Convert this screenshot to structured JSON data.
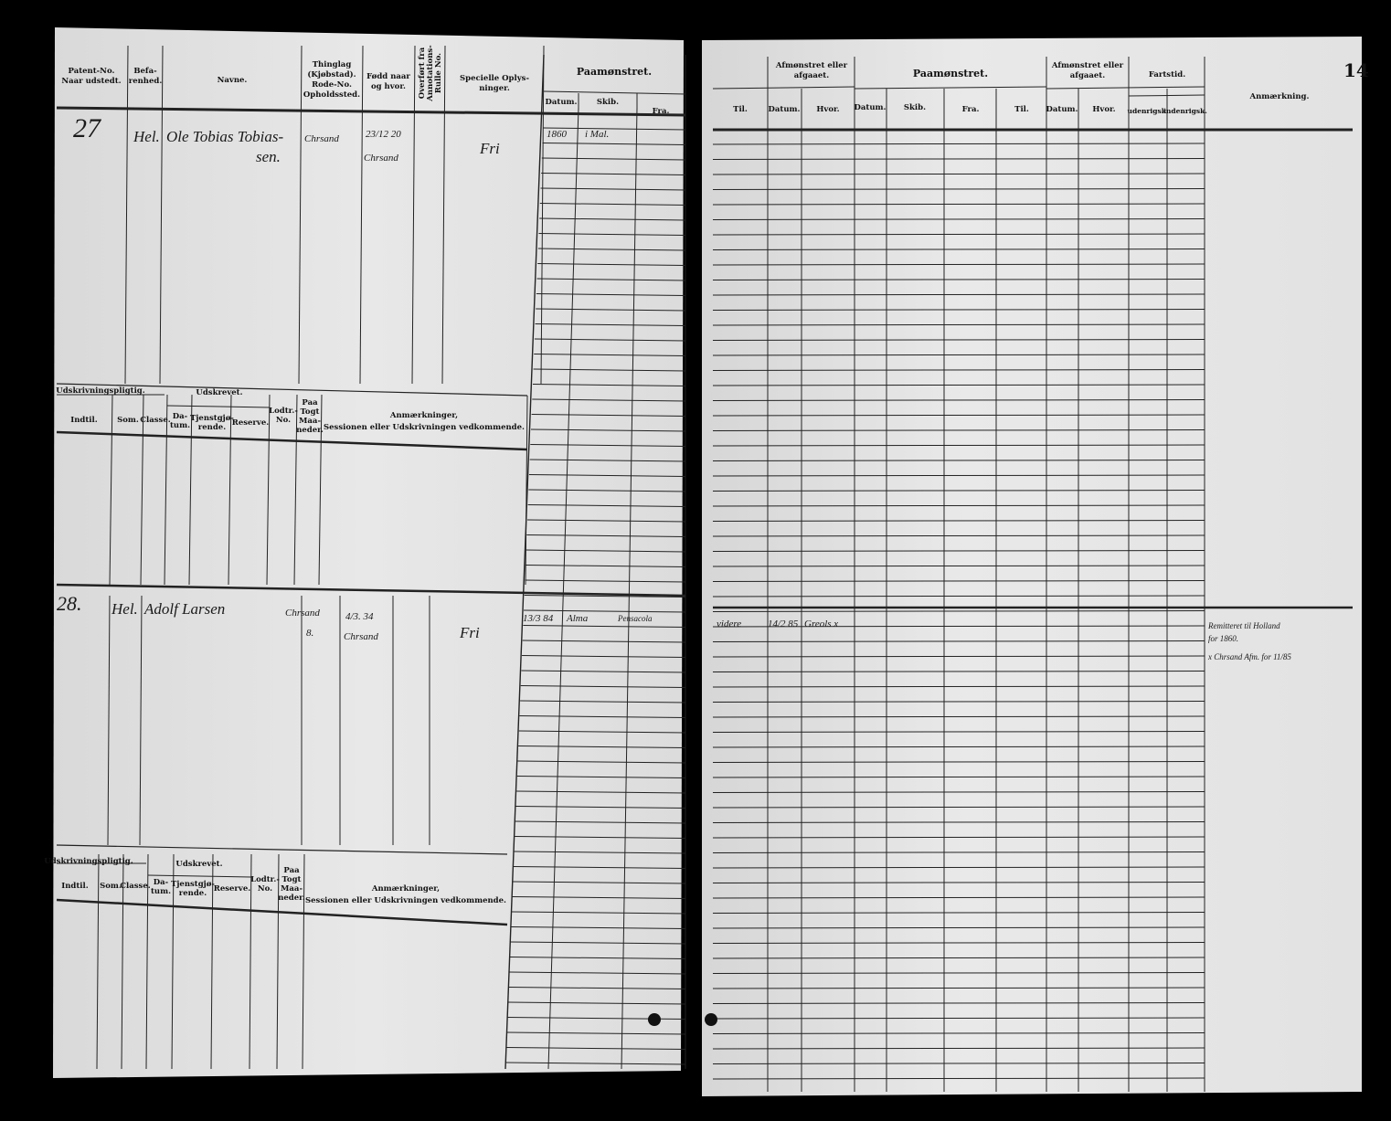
{
  "page_number": "14",
  "left_page": {
    "headers": {
      "patent": [
        "Patent-No.",
        "Naar udstedt."
      ],
      "befarenhed": [
        "Befa-",
        "renhed."
      ],
      "navne": "Navne.",
      "thinglag": [
        "Thinglag",
        "(Kjøbstad).",
        "Rode-No.",
        "Opholdssted."
      ],
      "fodt": [
        "Fødd naar",
        "og hvor."
      ],
      "overfort": [
        "Overført fra",
        "Annotations-",
        "Rulle No."
      ],
      "specielle": [
        "Specielle Oplys-",
        "ninger."
      ],
      "paamonstret": "Paamønstret.",
      "datum": "Datum.",
      "skib": "Skib.",
      "fra": "Fra."
    },
    "sub_headers": {
      "udskrivningspligtig": "Udskrivningspligtig.",
      "udskrevet": "Udskrevet.",
      "indtil": "Indtil.",
      "som": "Som.",
      "classe": "Classe.",
      "datum": [
        "Da-",
        "tum."
      ],
      "tjenstgjorende": [
        "Tjenstgjø-",
        "rende."
      ],
      "reserve": "Reserve.",
      "lodtr": [
        "Lodtr.-",
        "No."
      ],
      "paa_togt": [
        "Paa",
        "Togt",
        "Maa-",
        "neder."
      ],
      "anmaerkninger": [
        "Anmærkninger,",
        "Sessionen eller Udskrivningen vedkommende."
      ]
    },
    "records": [
      {
        "number": "27",
        "befarenhed": "Hel.",
        "name": "Ole Tobias Tobiassen",
        "name_line1": "Ole Tobias Tobias-",
        "name_line2": "sen.",
        "thinglag": "Chrsand",
        "fodt": "23/12 20",
        "fodt_place": "Chrsand",
        "specielle": "Fri",
        "paamonstret_datum": "1860",
        "paamonstret_skib": "i Mal."
      },
      {
        "number": "28.",
        "befarenhed": "Hel.",
        "name": "Adolf Larsen",
        "thinglag": "Chrsand",
        "thinglag_rode": "8.",
        "fodt": "4/3. 34",
        "fodt_place": "Chrsand",
        "specielle": "Fri",
        "paamonstret_datum": "13/3 84",
        "paamonstret_skib": "Alma",
        "paamonstret_fra": "Pensacola"
      }
    ]
  },
  "right_page": {
    "headers": {
      "til": "Til.",
      "afmonstret1": [
        "Afmønstret eller",
        "afgaaet."
      ],
      "datum": "Datum.",
      "hvor": "Hvor.",
      "paamonstret": "Paamønstret.",
      "skib": "Skib.",
      "fra": "Fra.",
      "afmonstret2": [
        "Afmønstret eller",
        "afgaaet."
      ],
      "fartstid": "Fartstid.",
      "udenrigsk": "udenrigsk.",
      "indenrigsk": "indenrigsk.",
      "anmaerkning": "Anmærkning."
    },
    "record_28": {
      "til": "videre",
      "afm_datum": "14/2 85",
      "afm_hvor": "Greols x",
      "anmaerkning_line1": "Remitteret til Holland",
      "anmaerkning_line2": "for 1860.",
      "anmaerkning_line3": "x Chrsand Afm. for 11/85"
    }
  }
}
